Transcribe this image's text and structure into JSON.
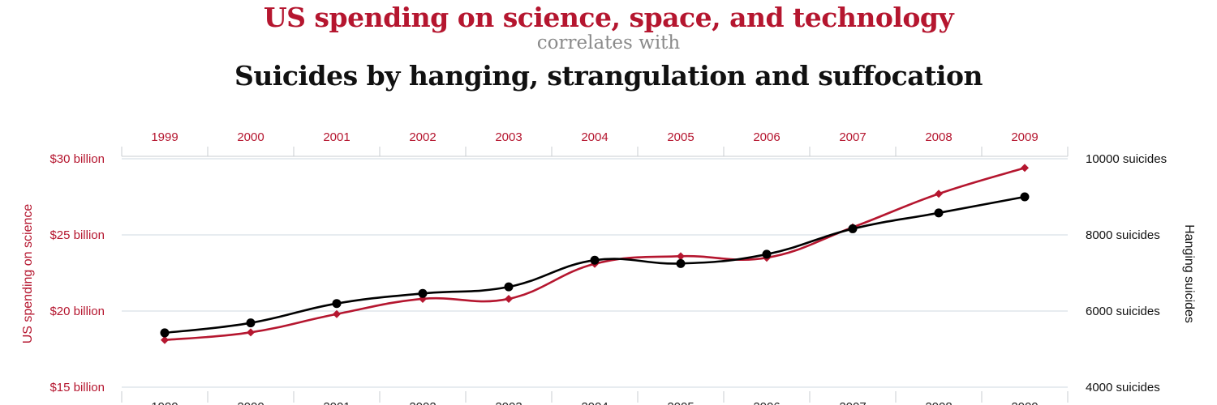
{
  "header": {
    "title_top": "US spending on science, space, and technology",
    "connector": "correlates with",
    "title_bottom": "Suicides by hanging, strangulation and suffocation"
  },
  "chart_data": {
    "type": "line",
    "x": [
      "1999",
      "2000",
      "2001",
      "2002",
      "2003",
      "2004",
      "2005",
      "2006",
      "2007",
      "2008",
      "2009"
    ],
    "y_left": {
      "label": "US spending on science",
      "ticks": [
        "$15 billion",
        "$20 billion",
        "$25 billion",
        "$30 billion"
      ],
      "range": [
        15,
        30
      ],
      "color": "#b5162f"
    },
    "y_right": {
      "label": "Hanging suicides",
      "ticks": [
        "4000 suicides",
        "6000 suicides",
        "8000 suicides",
        "10000 suicides"
      ],
      "range": [
        4000,
        10000
      ],
      "color": "#000000"
    },
    "series": [
      {
        "axis": "left",
        "color": "#b5162f",
        "marker": "diamond",
        "values": [
          18.1,
          18.6,
          19.8,
          20.8,
          20.8,
          23.1,
          23.6,
          23.5,
          25.5,
          27.7,
          29.4
        ]
      },
      {
        "axis": "right",
        "color": "#000000",
        "marker": "circle",
        "values": [
          5427,
          5688,
          6198,
          6462,
          6635,
          7336,
          7248,
          7491,
          8161,
          8578,
          9000
        ]
      }
    ],
    "grid": true
  }
}
